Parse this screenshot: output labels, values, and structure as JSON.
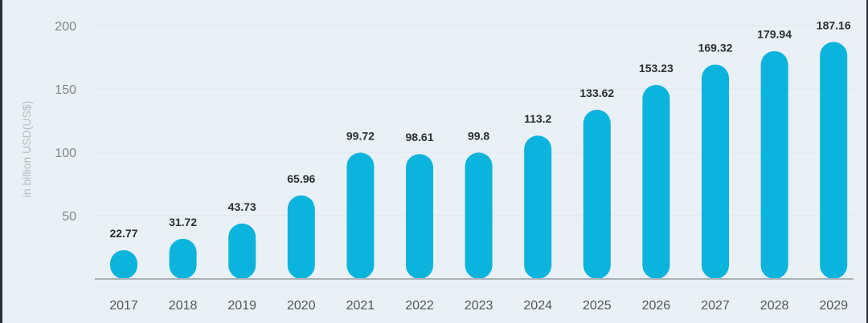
{
  "chart_data": {
    "type": "bar",
    "categories": [
      "2017",
      "2018",
      "2019",
      "2020",
      "2021",
      "2022",
      "2023",
      "2024",
      "2025",
      "2026",
      "2027",
      "2028",
      "2029"
    ],
    "values": [
      22.77,
      31.72,
      43.73,
      65.96,
      99.72,
      98.61,
      99.8,
      113.2,
      133.62,
      153.23,
      169.32,
      179.94,
      187.16
    ],
    "data_labels": [
      "22.77",
      "31.72",
      "43.73",
      "65.96",
      "99.72",
      "98.61",
      "99.8",
      "113.2",
      "133.62",
      "153.23",
      "169.32",
      "179.94",
      "187.16"
    ],
    "ylabel": "in billion USD(US$)",
    "yticks": [
      50,
      100,
      150,
      200
    ],
    "ylim": [
      0,
      200
    ],
    "grid": true,
    "bar_color": "#0bb4dc",
    "grid_color": "#dfe6ec",
    "axis_color": "#a9b1b8"
  }
}
